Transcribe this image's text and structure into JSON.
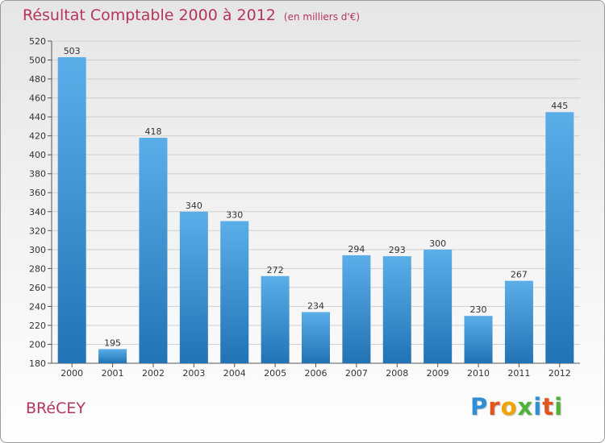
{
  "title": "Résultat Comptable 2000 à 2012",
  "subtitle": "(en milliers d'€)",
  "town": "BRéCEY",
  "logo": {
    "text": "Proxiti",
    "letter_colors": [
      "#2f8fd6",
      "#e3531e",
      "#f0a400",
      "#4fb33a",
      "#2f8fd6",
      "#e3531e",
      "#4fb33a"
    ]
  },
  "colors": {
    "bar_light": "#5baee8",
    "bar_dark": "#2273b5",
    "title": "#b5355a",
    "grid": "#cfcfcf"
  },
  "chart_data": {
    "type": "bar",
    "title": "Résultat Comptable 2000 à 2012",
    "xlabel": "",
    "ylabel": "",
    "categories": [
      "2000",
      "2001",
      "2002",
      "2003",
      "2004",
      "2005",
      "2006",
      "2007",
      "2008",
      "2009",
      "2010",
      "2011",
      "2012"
    ],
    "values": [
      503,
      195,
      418,
      340,
      330,
      272,
      234,
      294,
      293,
      300,
      230,
      267,
      445
    ],
    "ylim": [
      180,
      520
    ],
    "yticks": [
      180,
      200,
      220,
      240,
      260,
      280,
      300,
      320,
      340,
      360,
      380,
      400,
      420,
      440,
      460,
      480,
      500,
      520
    ],
    "grid": true,
    "data_labels": true
  }
}
